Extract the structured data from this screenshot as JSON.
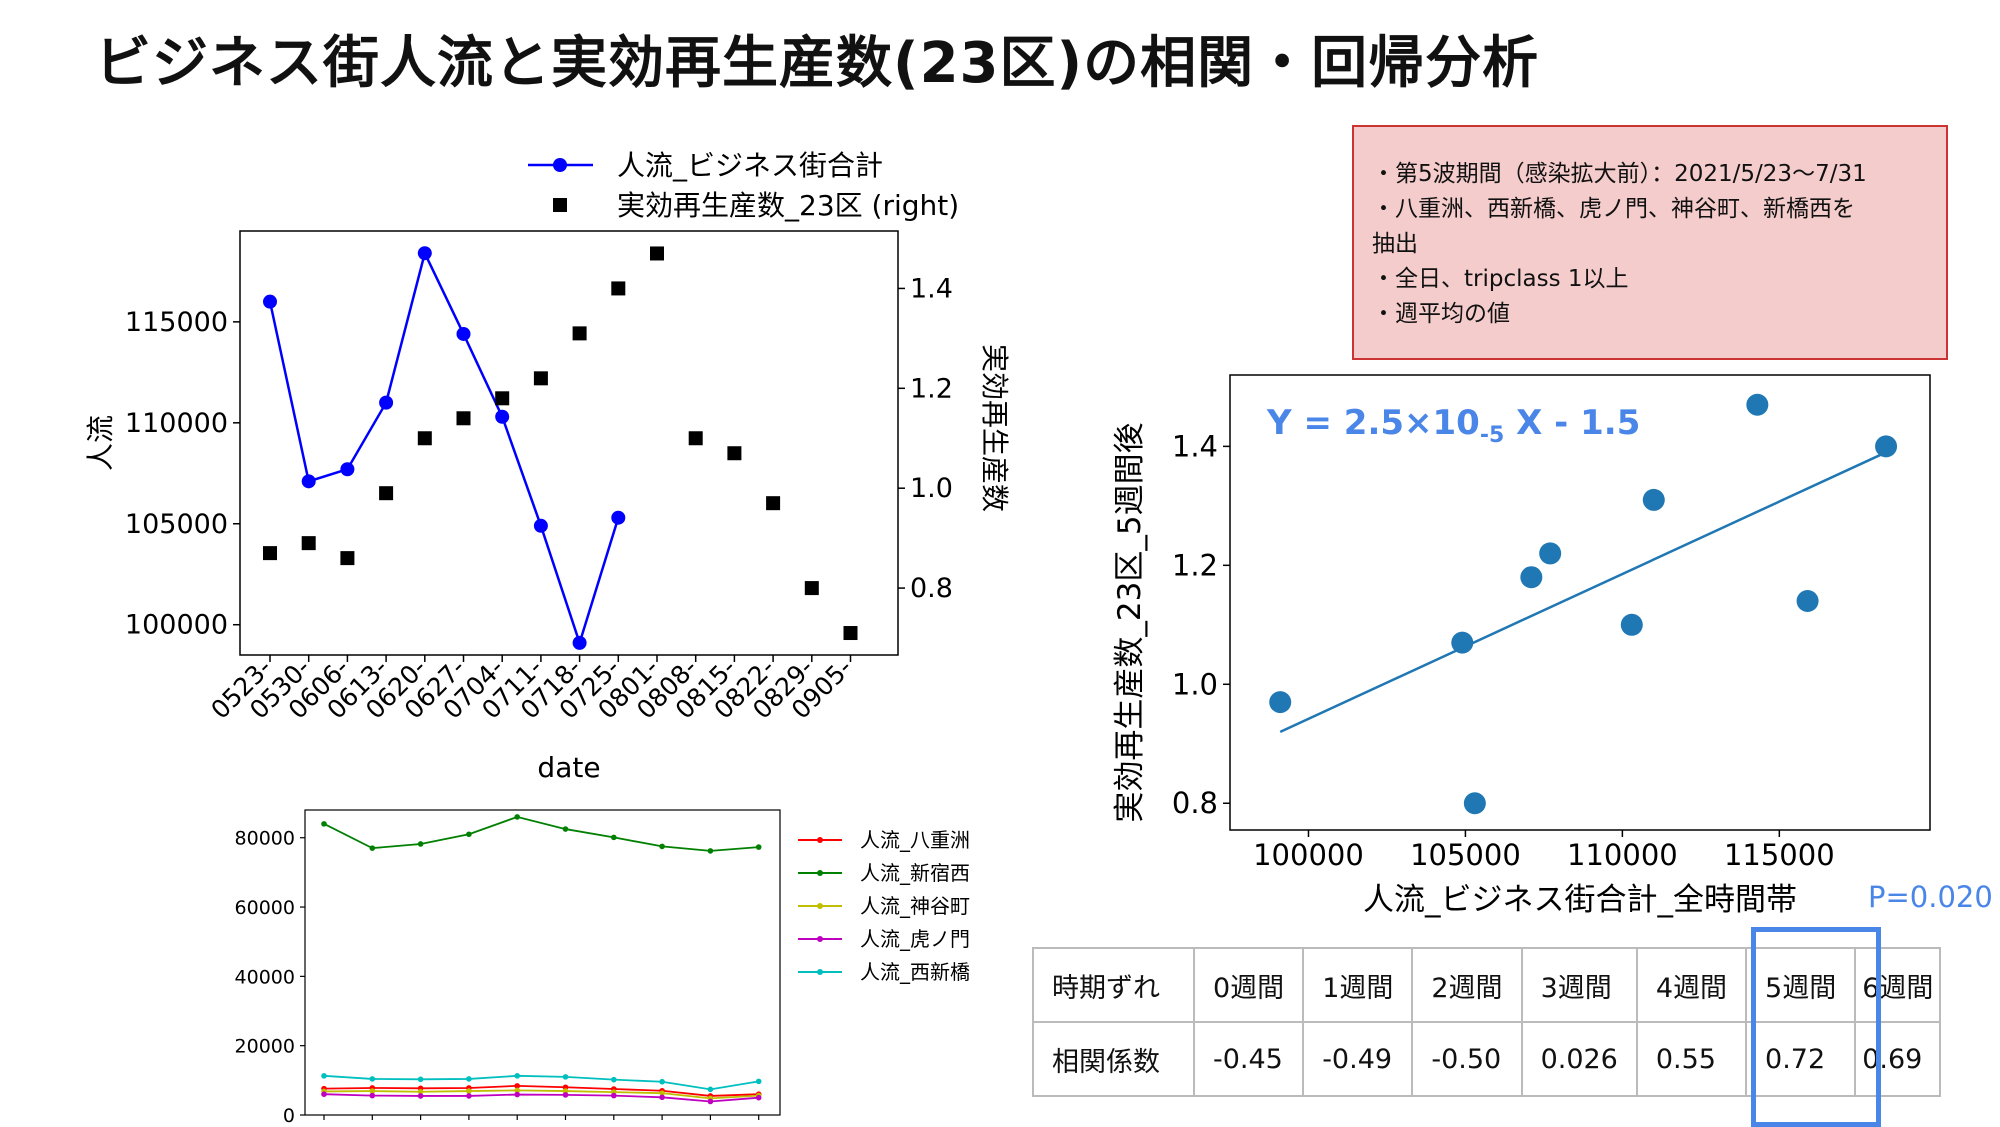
{
  "title": "ビジネス街人流と実効再生産数(23区)の相関・回帰分析",
  "note": {
    "lines": [
      "・第5波期間（感染拡大前）：2021/5/23〜7/31",
      "・八重洲、西新橋、虎ノ門、神谷町、新橋西を\n抽出",
      "・全日、tripclass 1以上",
      "・週平均の値"
    ]
  },
  "table": {
    "header_label": "時期ずれ",
    "row_label": "相関係数",
    "columns": [
      "0週間",
      "1週間",
      "2週間",
      "3週間",
      "4週間",
      "5週間",
      "6週間"
    ],
    "values": [
      "-0.45",
      "-0.49",
      "-0.50",
      "0.026",
      "0.55",
      "0.72",
      "0.69"
    ],
    "highlight_index": 5,
    "p_label": "P=0.020",
    "highlight_color": "#4a86e8"
  },
  "chart_data": [
    {
      "type": "line",
      "xlabel": "date",
      "ylabel": "人流",
      "y2label": "実効再生産数",
      "categories": [
        "0523-",
        "0530-",
        "0606-",
        "0613-",
        "0620-",
        "0627-",
        "0704-",
        "0711-",
        "0718-",
        "0725-",
        "0801-",
        "0808-",
        "0815-",
        "0822-",
        "0829-",
        "0905-"
      ],
      "ylim": [
        98500,
        119500
      ],
      "y_ticks": [
        100000,
        105000,
        110000,
        115000
      ],
      "y2lim": [
        0.666,
        1.515
      ],
      "y2_ticks": [
        0.8,
        1.0,
        1.2,
        1.4
      ],
      "series": [
        {
          "name": "人流_ビジネス街合計",
          "axis": "left",
          "style": "line-marker",
          "color": "#0000ff",
          "values": [
            116000,
            107100,
            107700,
            111000,
            118400,
            114400,
            110300,
            104900,
            99100,
            105300,
            null,
            null,
            null,
            null,
            null,
            null
          ]
        },
        {
          "name": "実効再生産数_23区 (right)",
          "axis": "right",
          "style": "square-marker",
          "color": "#000000",
          "values": [
            0.87,
            0.89,
            0.86,
            0.99,
            1.1,
            1.14,
            1.18,
            1.22,
            1.31,
            1.4,
            1.47,
            1.1,
            1.07,
            0.97,
            0.8,
            0.71
          ]
        }
      ]
    },
    {
      "type": "line",
      "ylim": [
        0,
        88000
      ],
      "y_ticks": [
        0,
        20000,
        40000,
        60000,
        80000
      ],
      "series": [
        {
          "name": "人流_八重洲",
          "color": "#ff0000",
          "values": [
            7600,
            7800,
            7700,
            7800,
            8400,
            8000,
            7500,
            7000,
            5500,
            6000
          ]
        },
        {
          "name": "人流_新宿西",
          "color": "#008000",
          "values": [
            84000,
            77000,
            78200,
            81000,
            86000,
            82500,
            80100,
            77500,
            76200,
            77300
          ]
        },
        {
          "name": "人流_神谷町",
          "color": "#bfbf00",
          "values": [
            6800,
            6900,
            6700,
            6900,
            7100,
            6900,
            6600,
            6300,
            4800,
            5600
          ]
        },
        {
          "name": "人流_虎ノ門",
          "color": "#bf00bf",
          "values": [
            6000,
            5600,
            5500,
            5500,
            5900,
            5800,
            5600,
            5100,
            3900,
            5000
          ]
        },
        {
          "name": "人流_西新橋",
          "color": "#00bfbf",
          "values": [
            11300,
            10400,
            10300,
            10400,
            11300,
            11000,
            10200,
            9600,
            7400,
            9700
          ]
        }
      ]
    },
    {
      "type": "scatter",
      "xlabel": "人流_ビジネス街合計_全時間帯",
      "ylabel": "実効再生産数_23区_5週間後",
      "annotation": {
        "prefix": "Y = 2.5×10",
        "exp": "-5",
        "suffix": " X - 1.5",
        "color": "#4a86e8"
      },
      "xlim": [
        97500,
        119800
      ],
      "x_ticks": [
        100000,
        105000,
        110000,
        115000
      ],
      "ylim": [
        0.755,
        1.52
      ],
      "y_ticks": [
        0.8,
        1.0,
        1.2,
        1.4
      ],
      "points": [
        [
          99100,
          0.97
        ],
        [
          104900,
          1.07
        ],
        [
          105300,
          0.8
        ],
        [
          107100,
          1.18
        ],
        [
          107700,
          1.22
        ],
        [
          110300,
          1.1
        ],
        [
          111000,
          1.31
        ],
        [
          114300,
          1.47
        ],
        [
          115900,
          1.14
        ],
        [
          118400,
          1.4
        ]
      ],
      "fit_line": [
        [
          99100,
          0.92
        ],
        [
          118400,
          1.39
        ]
      ],
      "color": "#1f77b4"
    }
  ]
}
